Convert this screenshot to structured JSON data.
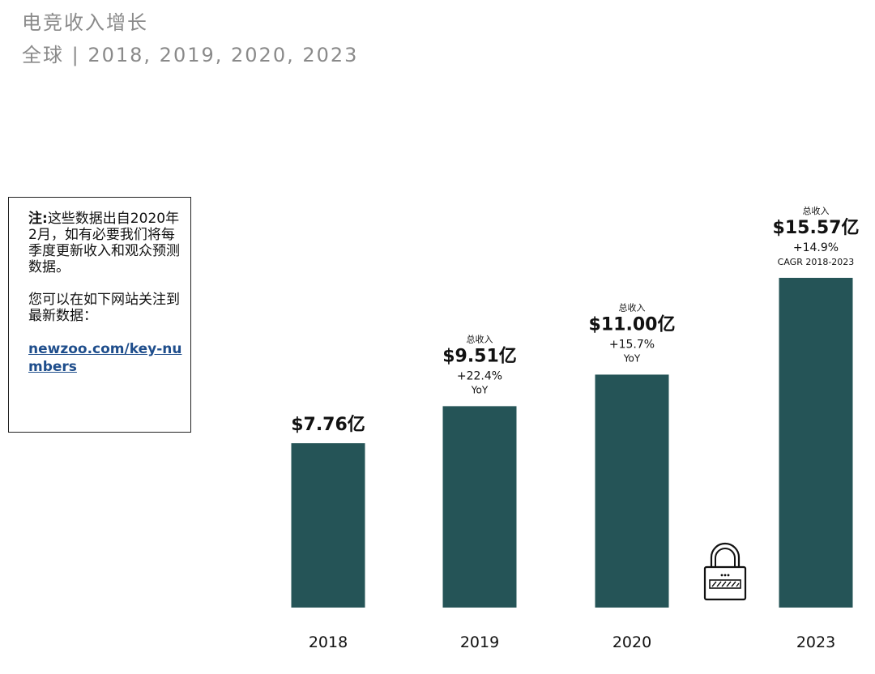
{
  "header": {
    "title": "电竞收入增长",
    "subtitle": "全球 | 2018, 2019, 2020, 2023"
  },
  "note": {
    "label": "注:",
    "text1": "这些数据出自2020年2月，如有必要我们将每季度更新收入和观众预测数据。",
    "text2": "您可以在如下网站关注到最新数据：",
    "link": "newzoo.com/key-numbers"
  },
  "chart_data": {
    "type": "bar",
    "bar_color": "#255457",
    "unit": "亿",
    "categories": [
      "2018",
      "2019",
      "2020",
      "2023"
    ],
    "values": [
      7.76,
      9.51,
      11.0,
      15.57
    ],
    "labels": [
      {
        "top": "",
        "value": "$7.76亿",
        "growth": "",
        "growth_note": ""
      },
      {
        "top": "总收入",
        "value": "$9.51亿",
        "growth": "+22.4%",
        "growth_note": "YoY"
      },
      {
        "top": "总收入",
        "value": "$11.00亿",
        "growth": "+15.7%",
        "growth_note": "YoY"
      },
      {
        "top": "总收入",
        "value": "$15.57亿",
        "growth": "+14.9%",
        "growth_note": "CAGR 2018-2023"
      }
    ],
    "ylim": [
      0,
      21
    ],
    "grid": false,
    "lock_icon": "lock-icon"
  }
}
